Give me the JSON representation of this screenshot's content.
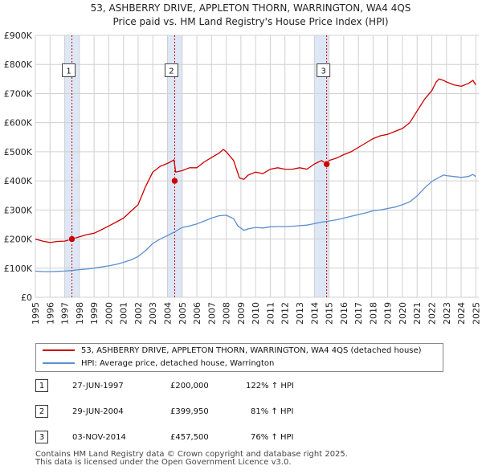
{
  "chart_data": {
    "type": "line",
    "title": "53, ASHBERRY DRIVE, APPLETON THORN, WARRINGTON, WA4 4QS",
    "subtitle": "Price paid vs. HM Land Registry's House Price Index (HPI)",
    "xlim": [
      1995,
      2025.2
    ],
    "ylim": [
      0,
      900000
    ],
    "x_ticks": [
      "1995",
      "1996",
      "1997",
      "1998",
      "1999",
      "2000",
      "2001",
      "2002",
      "2003",
      "2004",
      "2005",
      "2006",
      "2007",
      "2008",
      "2009",
      "2010",
      "2011",
      "2012",
      "2013",
      "2014",
      "2015",
      "2016",
      "2017",
      "2018",
      "2019",
      "2020",
      "2021",
      "2022",
      "2023",
      "2024",
      "2025"
    ],
    "y_ticks": [
      {
        "value": 0,
        "label": "£0"
      },
      {
        "value": 100000,
        "label": "£100K"
      },
      {
        "value": 200000,
        "label": "£200K"
      },
      {
        "value": 300000,
        "label": "£300K"
      },
      {
        "value": 400000,
        "label": "£400K"
      },
      {
        "value": 500000,
        "label": "£500K"
      },
      {
        "value": 600000,
        "label": "£600K"
      },
      {
        "value": 700000,
        "label": "£700K"
      },
      {
        "value": 800000,
        "label": "£800K"
      },
      {
        "value": 900000,
        "label": "£900K"
      }
    ],
    "series": [
      {
        "name": "53, ASHBERRY DRIVE, APPLETON THORN, WARRINGTON, WA4 4QS (detached house)",
        "color": "#cc0000",
        "x": [
          1995.0,
          1995.5,
          1996.0,
          1996.5,
          1997.0,
          1997.49,
          1998.0,
          1998.5,
          1999.0,
          1999.5,
          2000.0,
          2000.5,
          2001.0,
          2001.5,
          2002.0,
          2002.5,
          2003.0,
          2003.5,
          2004.0,
          2004.45,
          2004.55,
          2005.0,
          2005.5,
          2006.0,
          2006.5,
          2007.0,
          2007.5,
          2007.8,
          2008.0,
          2008.5,
          2008.9,
          2009.2,
          2009.5,
          2010.0,
          2010.5,
          2011.0,
          2011.5,
          2012.0,
          2012.5,
          2013.0,
          2013.5,
          2014.0,
          2014.5,
          2014.84,
          2015.0,
          2015.5,
          2016.0,
          2016.5,
          2017.0,
          2017.5,
          2018.0,
          2018.5,
          2019.0,
          2019.5,
          2020.0,
          2020.5,
          2021.0,
          2021.5,
          2022.0,
          2022.3,
          2022.5,
          2022.8,
          2023.0,
          2023.5,
          2024.0,
          2024.5,
          2024.8,
          2025.0
        ],
        "values": [
          200000,
          193000,
          188000,
          192000,
          193000,
          200000,
          208000,
          215000,
          220000,
          232000,
          245000,
          258000,
          272000,
          295000,
          318000,
          380000,
          430000,
          450000,
          460000,
          472000,
          430000,
          435000,
          445000,
          445000,
          465000,
          480000,
          495000,
          508000,
          500000,
          470000,
          410000,
          405000,
          420000,
          430000,
          425000,
          440000,
          445000,
          440000,
          440000,
          445000,
          440000,
          458000,
          470000,
          457500,
          470000,
          478000,
          490000,
          500000,
          515000,
          530000,
          545000,
          555000,
          560000,
          570000,
          580000,
          600000,
          640000,
          680000,
          710000,
          740000,
          750000,
          745000,
          740000,
          730000,
          725000,
          735000,
          745000,
          730000
        ]
      },
      {
        "name": "HPI: Average price, detached house, Warrington",
        "color": "#5b8fd1",
        "x": [
          1995.0,
          1995.5,
          1996.0,
          1996.5,
          1997.0,
          1997.5,
          1998.0,
          1998.5,
          1999.0,
          1999.5,
          2000.0,
          2000.5,
          2001.0,
          2001.5,
          2002.0,
          2002.5,
          2003.0,
          2003.5,
          2004.0,
          2004.5,
          2005.0,
          2005.5,
          2006.0,
          2006.5,
          2007.0,
          2007.5,
          2008.0,
          2008.5,
          2008.8,
          2009.2,
          2009.5,
          2010.0,
          2010.5,
          2011.0,
          2011.5,
          2012.0,
          2012.5,
          2013.0,
          2013.5,
          2014.0,
          2014.5,
          2015.0,
          2015.5,
          2016.0,
          2016.5,
          2017.0,
          2017.5,
          2018.0,
          2018.5,
          2019.0,
          2019.5,
          2020.0,
          2020.5,
          2021.0,
          2021.5,
          2022.0,
          2022.5,
          2022.8,
          2023.0,
          2023.5,
          2024.0,
          2024.5,
          2024.8,
          2025.0
        ],
        "values": [
          90000,
          88000,
          88000,
          89000,
          90000,
          92000,
          95000,
          97000,
          100000,
          104000,
          108000,
          113000,
          120000,
          128000,
          140000,
          160000,
          185000,
          200000,
          212000,
          225000,
          240000,
          245000,
          252000,
          262000,
          272000,
          280000,
          282000,
          270000,
          245000,
          230000,
          235000,
          240000,
          238000,
          242000,
          243000,
          243000,
          244000,
          246000,
          248000,
          253000,
          258000,
          262000,
          266000,
          272000,
          278000,
          284000,
          290000,
          297000,
          300000,
          305000,
          310000,
          318000,
          328000,
          348000,
          375000,
          398000,
          412000,
          420000,
          418000,
          415000,
          412000,
          415000,
          422000,
          415000
        ]
      }
    ],
    "sales": [
      {
        "label": "1",
        "year": 1997.49,
        "price": 200000
      },
      {
        "label": "2",
        "year": 2004.49,
        "price": 399950
      },
      {
        "label": "3",
        "year": 2014.84,
        "price": 457500
      }
    ]
  },
  "legend": {
    "property_label": "53, ASHBERRY DRIVE, APPLETON THORN, WARRINGTON, WA4 4QS (detached house)",
    "hpi_label": "HPI: Average price, detached house, Warrington"
  },
  "sales_table": [
    {
      "num": "1",
      "date": "27-JUN-1997",
      "price": "£200,000",
      "hpi": "122% ↑ HPI"
    },
    {
      "num": "2",
      "date": "29-JUN-2004",
      "price": "£399,950",
      "hpi": "81% ↑ HPI"
    },
    {
      "num": "3",
      "date": "03-NOV-2014",
      "price": "£457,500",
      "hpi": "76% ↑ HPI"
    }
  ],
  "footer": {
    "line1": "Contains HM Land Registry data © Crown copyright and database right 2025.",
    "line2": "This data is licensed under the Open Government Licence v3.0."
  },
  "colors": {
    "property": "#cc0000",
    "hpi": "#5b8fd1",
    "band": "#dde7f5",
    "grid": "#d0d0d0"
  }
}
